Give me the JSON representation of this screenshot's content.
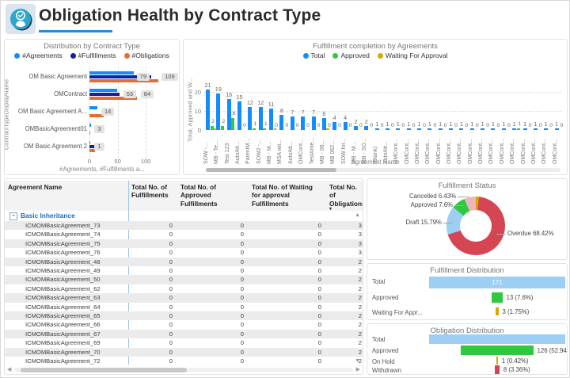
{
  "header": {
    "title": "Obligation Health by Contract Type",
    "icon": "obligation-health-icon"
  },
  "colors": {
    "accent_blue": "#118DFF",
    "dark_blue": "#12239E",
    "orange": "#E66C37",
    "green": "#2EC940",
    "gold": "#D9A800",
    "red": "#D64554",
    "pink": "#EFB5BD",
    "light_blue": "#9DCEF3"
  },
  "chart_data": {
    "distribution": {
      "type": "bar",
      "title": "Distribution by Contract Type",
      "xlabel": "#Agreements, #Fulfillments a...",
      "ylabel": "ContractTypeDisplayName",
      "x_ticks": [
        0,
        50,
        100
      ],
      "xlim": [
        0,
        140
      ],
      "series_names": [
        "#Agreements",
        "#Fulfillments",
        "#Obligations"
      ],
      "series_colors": [
        "#118DFF",
        "#12239E",
        "#E66C37"
      ],
      "rows": [
        {
          "category": "OM Basic Agreement",
          "values": [
            79,
            109,
            122
          ],
          "labels": [
            {
              "text": "79",
              "at": 84
            },
            {
              "text": "109",
              "at": 128
            }
          ]
        },
        {
          "category": "OMContract",
          "values": [
            49,
            53,
            84
          ],
          "labels": [
            {
              "text": "53",
              "at": 60
            },
            {
              "text": "84",
              "at": 91
            }
          ]
        },
        {
          "category": "OM Basic Agreement A...",
          "values": [
            14,
            0,
            25
          ],
          "labels": [
            {
              "text": "14",
              "at": 21
            }
          ]
        },
        {
          "category": "OMBasicAgreement01",
          "values": [
            3,
            0,
            2
          ],
          "labels": [
            {
              "text": "3",
              "at": 9
            }
          ]
        },
        {
          "category": "OM Basic Agreement 2",
          "values": [
            1,
            9,
            10
          ],
          "labels": [
            {
              "text": "1",
              "at": 9
            }
          ]
        }
      ]
    },
    "fulfillment_by_agreements": {
      "type": "bar",
      "title": "Fulfillment completion by Agreements",
      "xlabel": "Agreement Name",
      "ylabel": "Total, Approved and W...",
      "y_ticks": [
        0,
        10,
        20
      ],
      "ylim": [
        0,
        24
      ],
      "series_names": [
        "Total",
        "Approved",
        "Waiting For Approval"
      ],
      "series_colors": [
        "#118DFF",
        "#2EC940",
        "#D9A800"
      ],
      "categories": [
        "SOW -...",
        "MB - Te...",
        "Test 123",
        "AutoAtt...",
        "ParentM...",
        "SOW2 -...",
        "MB - M...",
        "MSA wit...",
        "AutoAtt...",
        "OMCont...",
        "TestAme...",
        "MB - 06...",
        "MB 062...",
        "SOW for...",
        "MB - M...",
        "MB - SO...",
        "(Blank)",
        "AutoAtt...",
        "OMCont...",
        "OMCont...",
        "OMCont...",
        "OMCont...",
        "OMCont...",
        "OMCont...",
        "OMCont...",
        "OMCont...",
        "OMCont...",
        "OMCont...",
        "OMCont...",
        "OMCont...",
        "OMCont...",
        "OMCont...",
        "OMCont...",
        "OMCont..."
      ],
      "series": [
        {
          "name": "Total",
          "values": [
            21,
            19,
            16,
            15,
            12,
            12,
            11,
            8,
            7,
            7,
            7,
            6,
            4,
            4,
            2,
            2,
            1,
            1,
            1,
            1,
            1,
            1,
            1,
            1,
            1,
            1,
            1,
            1,
            1,
            1,
            1,
            1,
            1,
            1
          ]
        },
        {
          "name": "Approved",
          "values": [
            2,
            2,
            6,
            0,
            1,
            1,
            0,
            0,
            0,
            0,
            0,
            0,
            0,
            0,
            0,
            0,
            0,
            0,
            0,
            0,
            0,
            0,
            0,
            0,
            0,
            0,
            0,
            0,
            0,
            1,
            0,
            0,
            0,
            0
          ]
        },
        {
          "name": "Waiting For Approval",
          "values": [
            1,
            0,
            0,
            0,
            0,
            0,
            1,
            0,
            0,
            0,
            0,
            1,
            0,
            0,
            0,
            0,
            0,
            0,
            0,
            0,
            0,
            0,
            0,
            0,
            0,
            0,
            0,
            0,
            0,
            0,
            0,
            0,
            0,
            0
          ]
        }
      ]
    },
    "status_donut": {
      "type": "pie",
      "title": "Fulfillment Status",
      "slices": [
        {
          "name": "Waiting For Approval",
          "pct": 1.75,
          "display": null,
          "color": "#D9A800"
        },
        {
          "name": "Overdue",
          "pct": 68.42,
          "display": "Overdue 68.42%",
          "color": "#D64554"
        },
        {
          "name": "Draft",
          "pct": 15.79,
          "display": "Draft 15.79%",
          "color": "#9DCEF3"
        },
        {
          "name": "Approved",
          "pct": 7.6,
          "display": "Approved 7.6%",
          "color": "#2EC940"
        },
        {
          "name": "Cancelled",
          "pct": 6.43,
          "display": "Cancelled 6.43%",
          "color": "#EFB5BD"
        }
      ]
    },
    "fulfillment_distribution": {
      "type": "bar",
      "title": "Fulfillment Distribution",
      "rows": [
        {
          "label": "Total",
          "value": 171,
          "display": "171",
          "inside": true,
          "color": "#9DCEF3"
        },
        {
          "label": "Approved",
          "value": 13,
          "display": "13 (7.6%)",
          "inside": false,
          "color": "#2EC940"
        },
        {
          "label": "Waiting For Appr...",
          "value": 3,
          "display": "3 (1.75%)",
          "inside": false,
          "color": "#D9A800"
        }
      ]
    },
    "obligation_distribution": {
      "type": "bar",
      "title": "Obligation Distribution",
      "rows": [
        {
          "label": "Total",
          "value": 238,
          "display": "",
          "inside": true,
          "color": "#9DCEF3"
        },
        {
          "label": "Approved",
          "value": 126,
          "display": "126 (52.94%)",
          "inside": false,
          "color": "#2EC940"
        },
        {
          "label": "On Hold",
          "value": 1,
          "display": "1 (0.42%)",
          "inside": false,
          "color": "#D9A800"
        },
        {
          "label": "Withdrawn",
          "value": 8,
          "display": "8 (3.36%)",
          "inside": false,
          "color": "#D64554"
        }
      ]
    }
  },
  "table": {
    "columns": [
      "Agreement Name",
      "Total No. of Fulfillments",
      "Total No. of Approved Fulfillments",
      "Total No. of Waiting for approval Fulfillments",
      "Total No. of Obligations"
    ],
    "sorted_column": "Total No. of Obligations",
    "group": "Basic Inheritance",
    "group_state": "expanded",
    "rows": [
      {
        "name": "ICMOMBasicAgreement_73",
        "values": [
          0,
          0,
          0,
          3
        ]
      },
      {
        "name": "ICMOMBasicAgreement_74",
        "values": [
          0,
          0,
          0,
          3
        ]
      },
      {
        "name": "ICMOMBasicAgreement_75",
        "values": [
          0,
          0,
          0,
          3
        ]
      },
      {
        "name": "ICMOMBasicAgreement_76",
        "values": [
          0,
          0,
          0,
          3
        ]
      },
      {
        "name": "ICMOMBasicAgreement_48",
        "values": [
          0,
          0,
          0,
          2
        ]
      },
      {
        "name": "ICMOMBasicAgreement_49",
        "values": [
          0,
          0,
          0,
          2
        ]
      },
      {
        "name": "ICMOMBasicAgreement_50",
        "values": [
          0,
          0,
          0,
          2
        ]
      },
      {
        "name": "ICMOMBasicAgreement_62",
        "values": [
          0,
          0,
          0,
          2
        ]
      },
      {
        "name": "ICMOMBasicAgreement_63",
        "values": [
          0,
          0,
          0,
          2
        ]
      },
      {
        "name": "ICMOMBasicAgreement_64",
        "values": [
          0,
          0,
          0,
          2
        ]
      },
      {
        "name": "ICMOMBasicAgreement_65",
        "values": [
          0,
          0,
          0,
          2
        ]
      },
      {
        "name": "ICMOMBasicAgreement_66",
        "values": [
          0,
          0,
          0,
          2
        ]
      },
      {
        "name": "ICMOMBasicAgreement_67",
        "values": [
          0,
          0,
          0,
          2
        ]
      },
      {
        "name": "ICMOMBasicAgreement_69",
        "values": [
          0,
          0,
          0,
          2
        ]
      },
      {
        "name": "ICMOMBasicAgreement_70",
        "values": [
          0,
          0,
          0,
          2
        ]
      },
      {
        "name": "ICMOMBasicAgreement_72",
        "values": [
          0,
          0,
          0,
          2
        ]
      }
    ]
  }
}
